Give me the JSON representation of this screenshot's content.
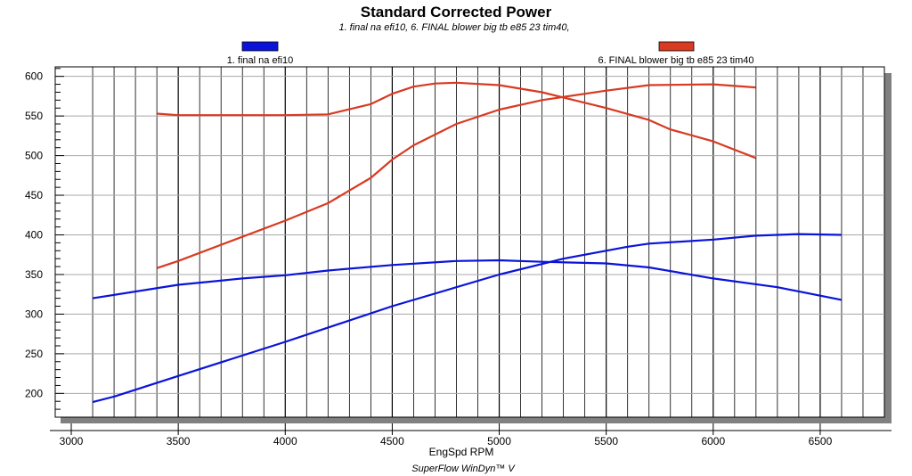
{
  "chart_data": {
    "type": "line",
    "title": "Standard Corrected Power",
    "subtitle": "1. final na efi10, 6. FINAL blower big tb e85 23 tim40,",
    "xlabel": "EngSpd RPM",
    "ylabel": "",
    "footer": "SuperFlow WinDyn™ V",
    "xlim": [
      2925,
      6800
    ],
    "ylim": [
      170,
      612
    ],
    "xticks": [
      3000,
      3500,
      4000,
      4500,
      5000,
      5500,
      6000,
      6500
    ],
    "yticks": [
      200,
      250,
      300,
      350,
      400,
      450,
      500,
      550,
      600
    ],
    "grid": true,
    "legend": [
      {
        "name": "1. final na efi10",
        "color": "#0a14d8"
      },
      {
        "name": "6. FINAL blower big tb e85 23 tim40",
        "color": "#d83a22"
      }
    ],
    "series": [
      {
        "name": "1. final na efi10 (curve A)",
        "color": "#0a14d8",
        "x": [
          3100,
          3500,
          3800,
          4000,
          4200,
          4500,
          4800,
          5000,
          5200,
          5500,
          5700,
          6000,
          6300,
          6600
        ],
        "y": [
          320,
          337,
          345,
          349,
          355,
          362,
          367,
          368,
          366,
          364,
          359,
          345,
          334,
          318
        ]
      },
      {
        "name": "1. final na efi10 (curve B)",
        "color": "#0a14d8",
        "x": [
          3100,
          3200,
          3500,
          4000,
          4500,
          5000,
          5300,
          5600,
          5700,
          6000,
          6200,
          6400,
          6600
        ],
        "y": [
          189,
          196,
          222,
          265,
          310,
          350,
          370,
          385,
          389,
          394,
          399,
          401,
          400
        ]
      },
      {
        "name": "6. FINAL blower big tb e85 23 tim40 (curve A)",
        "color": "#d83a22",
        "x": [
          3400,
          3500,
          4000,
          4200,
          4400,
          4500,
          4600,
          4700,
          4800,
          5000,
          5200,
          5500,
          5700,
          5800,
          6000,
          6200
        ],
        "y": [
          553,
          551,
          551,
          552,
          565,
          578,
          587,
          591,
          592,
          589,
          580,
          560,
          545,
          533,
          518,
          497
        ]
      },
      {
        "name": "6. FINAL blower big tb e85 23 tim40 (curve B)",
        "color": "#d83a22",
        "x": [
          3400,
          3500,
          4000,
          4200,
          4400,
          4500,
          4600,
          4800,
          5000,
          5200,
          5500,
          5700,
          6000,
          6200
        ],
        "y": [
          358,
          367,
          418,
          440,
          472,
          495,
          513,
          540,
          558,
          570,
          582,
          589,
          590,
          586
        ]
      }
    ]
  }
}
